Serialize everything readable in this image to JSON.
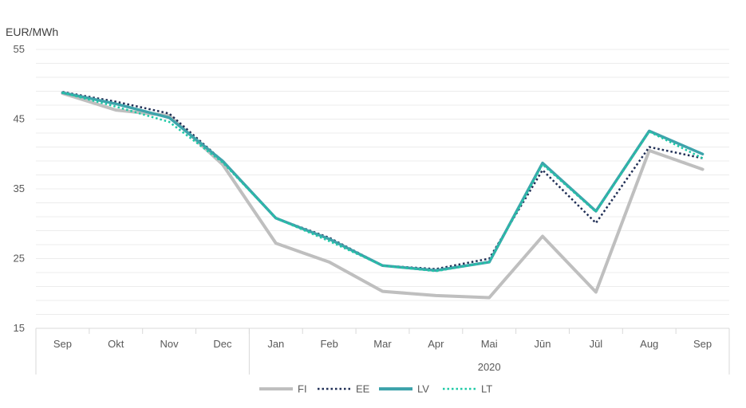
{
  "chart_data": {
    "type": "line",
    "title": "",
    "ylabel": "EUR/MWh",
    "xlabel": "",
    "ylim": [
      15,
      55
    ],
    "yticks": [
      15,
      25,
      35,
      45,
      55
    ],
    "grid": true,
    "legend_position": "bottom",
    "categories": [
      "Sep",
      "Okt",
      "Nov",
      "Dec",
      "Jan",
      "Feb",
      "Mar",
      "Apr",
      "Mai",
      "Jūn",
      "Jūl",
      "Aug",
      "Sep"
    ],
    "year_group": {
      "label": "2020",
      "start_index": 4,
      "end_index": 12
    },
    "series": [
      {
        "name": "FI",
        "color": "#bfbfbf",
        "style": "solid",
        "values": [
          48.7,
          46.3,
          45.5,
          38.5,
          27.2,
          24.5,
          20.3,
          19.7,
          19.4,
          28.2,
          20.2,
          40.5,
          37.8
        ]
      },
      {
        "name": "EE",
        "color": "#1f2e55",
        "style": "dotted",
        "values": [
          48.9,
          47.5,
          45.8,
          39.0,
          30.8,
          28.0,
          24.0,
          23.5,
          25.0,
          37.7,
          30.1,
          41.0,
          39.4
        ]
      },
      {
        "name": "LV",
        "color": "#3ea3ab",
        "style": "solid",
        "values": [
          48.8,
          47.2,
          45.2,
          39.0,
          30.8,
          27.8,
          24.0,
          23.3,
          24.5,
          38.7,
          31.8,
          43.3,
          40.0
        ]
      },
      {
        "name": "LT",
        "color": "#1ec9a6",
        "style": "dotted",
        "values": [
          48.8,
          46.8,
          44.6,
          38.8,
          30.8,
          27.5,
          24.0,
          23.2,
          24.5,
          38.5,
          31.7,
          43.2,
          39.4
        ]
      }
    ]
  }
}
